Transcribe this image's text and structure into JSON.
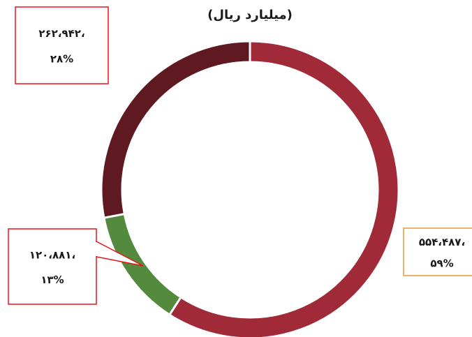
{
  "chart_data": {
    "type": "pie",
    "donut": true,
    "title": "(میلیارد ریال)",
    "values": [
      554487,
      120881,
      262942
    ],
    "value_labels": [
      "۵۵۴،۴۸۷،",
      "۱۲۰،۸۸۱،",
      "۲۶۲،۹۴۲،"
    ],
    "percents": [
      59,
      13,
      28
    ],
    "percent_labels": [
      "۵۹%",
      "۱۳%",
      "۲۸%"
    ],
    "colors": [
      "#a02a38",
      "#548a3e",
      "#5f1a21"
    ]
  }
}
